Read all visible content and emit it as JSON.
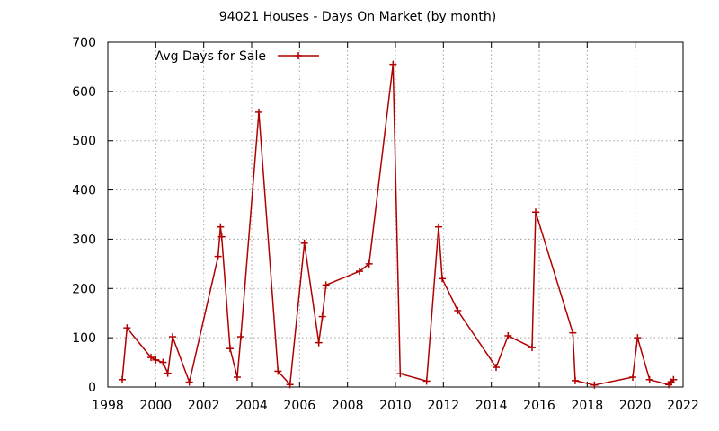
{
  "chart_data": {
    "type": "line",
    "title": "94021 Houses - Days On Market (by month)",
    "xlabel": "",
    "ylabel": "",
    "xlim": [
      1998,
      2022
    ],
    "ylim": [
      0,
      700
    ],
    "x_ticks": [
      1998,
      2000,
      2002,
      2004,
      2006,
      2008,
      2010,
      2012,
      2014,
      2016,
      2018,
      2020,
      2022
    ],
    "y_ticks": [
      0,
      100,
      200,
      300,
      400,
      500,
      600,
      700
    ],
    "grid": true,
    "legend_position": "top-left",
    "series": [
      {
        "name": "Avg Days for Sale",
        "color": "#b00000",
        "marker": "plus",
        "x": [
          1998.6,
          1998.8,
          1999.8,
          2000.0,
          2000.3,
          2000.5,
          2000.7,
          2001.4,
          2002.6,
          2002.7,
          2002.75,
          2003.1,
          2003.4,
          2003.55,
          2004.3,
          2005.1,
          2005.6,
          2006.2,
          2006.8,
          2006.95,
          2007.1,
          2008.5,
          2008.9,
          2009.9,
          2010.2,
          2011.3,
          2011.8,
          2011.95,
          2012.6,
          2014.2,
          2014.7,
          2015.7,
          2015.85,
          2017.4,
          2017.5,
          2018.3,
          2019.9,
          2020.1,
          2020.6,
          2021.4,
          2021.5,
          2021.6
        ],
        "y": [
          15,
          120,
          60,
          55,
          50,
          28,
          102,
          10,
          265,
          325,
          305,
          78,
          20,
          102,
          558,
          32,
          5,
          292,
          90,
          143,
          207,
          235,
          250,
          655,
          27,
          12,
          325,
          220,
          155,
          40,
          104,
          80,
          355,
          110,
          13,
          4,
          20,
          100,
          15,
          5,
          10,
          15
        ]
      }
    ]
  }
}
